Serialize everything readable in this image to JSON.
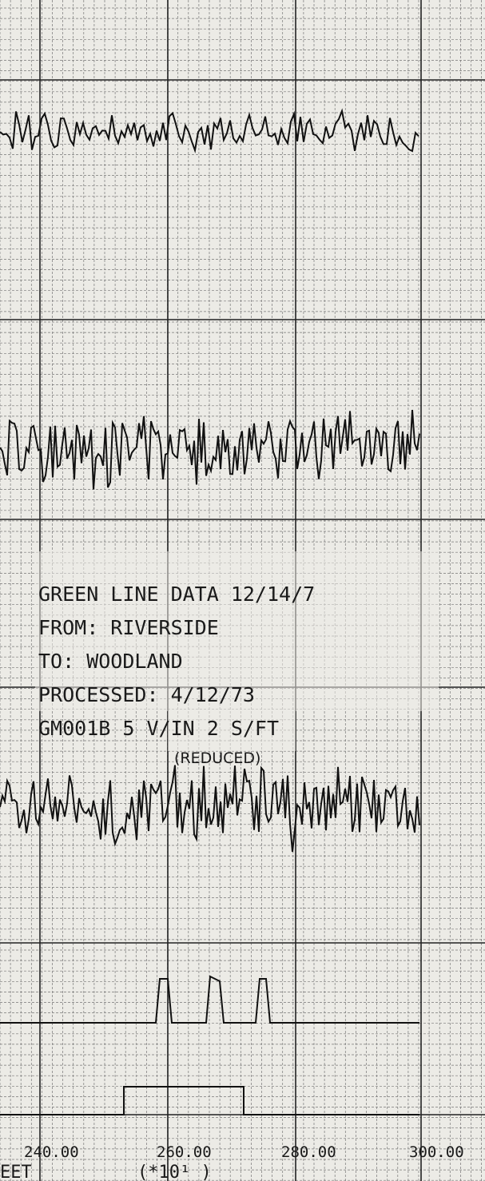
{
  "label_block": {
    "lines": [
      "GREEN LINE DATA  12/14/7",
      "FROM: RIVERSIDE",
      "TO: WOODLAND",
      "PROCESSED: 4/12/73",
      "GM001B  5 V/IN  2 S/FT"
    ],
    "note": "(REDUCED)"
  },
  "axis": {
    "labels": [
      "240.00",
      "260.00",
      "280.00",
      "300.00"
    ],
    "unit": "EET",
    "multiplier": "(*10¹ )"
  }
}
